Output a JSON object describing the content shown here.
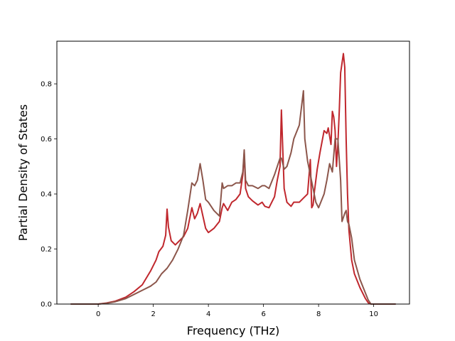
{
  "chart_data": {
    "type": "line",
    "title": "",
    "xlabel": "Frequency (THz)",
    "ylabel": "Partial Density of States",
    "xlim": [
      -1.5,
      11.3
    ],
    "ylim": [
      0.0,
      0.955
    ],
    "xticks": [
      0,
      2,
      4,
      6,
      8,
      10
    ],
    "yticks": [
      0.0,
      0.2,
      0.4,
      0.6,
      0.8
    ],
    "xtick_labels": [
      "0",
      "2",
      "4",
      "6",
      "8",
      "10"
    ],
    "ytick_labels": [
      "0.0",
      "0.2",
      "0.4",
      "0.6",
      "0.8"
    ],
    "grid": false,
    "legend": "none",
    "series": [
      {
        "color": "#c0272d",
        "x": [
          -1.0,
          0.0,
          0.3,
          0.6,
          1.0,
          1.3,
          1.6,
          1.9,
          2.1,
          2.2,
          2.35,
          2.45,
          2.5,
          2.55,
          2.65,
          2.8,
          2.95,
          3.1,
          3.25,
          3.4,
          3.5,
          3.6,
          3.7,
          3.8,
          3.9,
          4.0,
          4.2,
          4.4,
          4.5,
          4.55,
          4.7,
          4.85,
          5.0,
          5.15,
          5.25,
          5.3,
          5.35,
          5.45,
          5.6,
          5.8,
          5.95,
          6.05,
          6.2,
          6.4,
          6.5,
          6.6,
          6.65,
          6.75,
          6.85,
          7.0,
          7.1,
          7.3,
          7.45,
          7.6,
          7.7,
          7.75,
          7.8,
          7.85,
          7.95,
          8.05,
          8.2,
          8.3,
          8.35,
          8.45,
          8.5,
          8.55,
          8.6,
          8.65,
          8.7,
          8.75,
          8.8,
          8.9,
          8.95,
          9.0,
          9.05,
          9.1,
          9.2,
          9.3,
          9.5,
          9.7,
          9.8,
          9.9,
          10.8
        ],
        "values": [
          0.0,
          0.0,
          0.004,
          0.01,
          0.025,
          0.045,
          0.07,
          0.12,
          0.16,
          0.19,
          0.21,
          0.25,
          0.345,
          0.28,
          0.23,
          0.215,
          0.23,
          0.245,
          0.275,
          0.35,
          0.31,
          0.33,
          0.365,
          0.32,
          0.275,
          0.26,
          0.275,
          0.3,
          0.35,
          0.365,
          0.34,
          0.37,
          0.38,
          0.4,
          0.47,
          0.55,
          0.42,
          0.39,
          0.375,
          0.36,
          0.37,
          0.355,
          0.35,
          0.39,
          0.45,
          0.5,
          0.705,
          0.42,
          0.37,
          0.355,
          0.37,
          0.37,
          0.385,
          0.4,
          0.525,
          0.35,
          0.36,
          0.41,
          0.49,
          0.55,
          0.63,
          0.62,
          0.64,
          0.58,
          0.7,
          0.68,
          0.63,
          0.5,
          0.58,
          0.7,
          0.84,
          0.91,
          0.86,
          0.6,
          0.4,
          0.27,
          0.16,
          0.11,
          0.06,
          0.02,
          0.005,
          0.0,
          0.0
        ]
      },
      {
        "color": "#8c564b",
        "x": [
          -1.0,
          0.0,
          0.3,
          0.6,
          1.0,
          1.3,
          1.6,
          1.9,
          2.1,
          2.3,
          2.5,
          2.7,
          2.9,
          3.1,
          3.25,
          3.4,
          3.5,
          3.6,
          3.7,
          3.8,
          3.9,
          4.0,
          4.2,
          4.4,
          4.5,
          4.55,
          4.7,
          4.85,
          5.0,
          5.15,
          5.25,
          5.3,
          5.35,
          5.45,
          5.6,
          5.8,
          5.95,
          6.05,
          6.2,
          6.4,
          6.5,
          6.6,
          6.65,
          6.75,
          6.85,
          7.0,
          7.1,
          7.3,
          7.45,
          7.5,
          7.6,
          7.7,
          7.8,
          7.9,
          8.0,
          8.2,
          8.3,
          8.4,
          8.5,
          8.6,
          8.7,
          8.8,
          8.85,
          8.95,
          9.0,
          9.05,
          9.1,
          9.2,
          9.3,
          9.5,
          9.7,
          9.8,
          9.9,
          10.8
        ],
        "values": [
          0.0,
          0.0,
          0.003,
          0.008,
          0.02,
          0.035,
          0.05,
          0.065,
          0.08,
          0.11,
          0.13,
          0.16,
          0.2,
          0.25,
          0.34,
          0.44,
          0.43,
          0.45,
          0.51,
          0.45,
          0.38,
          0.37,
          0.34,
          0.32,
          0.44,
          0.42,
          0.43,
          0.43,
          0.44,
          0.44,
          0.48,
          0.56,
          0.45,
          0.43,
          0.43,
          0.42,
          0.43,
          0.43,
          0.42,
          0.47,
          0.5,
          0.53,
          0.53,
          0.49,
          0.5,
          0.55,
          0.6,
          0.65,
          0.775,
          0.6,
          0.52,
          0.47,
          0.42,
          0.37,
          0.35,
          0.4,
          0.45,
          0.51,
          0.48,
          0.6,
          0.6,
          0.45,
          0.3,
          0.33,
          0.34,
          0.3,
          0.29,
          0.24,
          0.16,
          0.09,
          0.04,
          0.015,
          0.0,
          0.0
        ]
      }
    ]
  }
}
